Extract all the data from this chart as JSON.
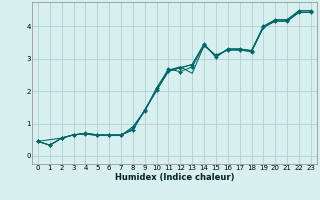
{
  "xlabel": "Humidex (Indice chaleur)",
  "bg_color": "#d8efef",
  "grid_color": "#a8cccc",
  "line_color": "#006666",
  "xlim": [
    -0.5,
    23.5
  ],
  "ylim": [
    -0.25,
    4.75
  ],
  "xticks": [
    0,
    1,
    2,
    3,
    4,
    5,
    6,
    7,
    8,
    9,
    10,
    11,
    12,
    13,
    14,
    15,
    16,
    17,
    18,
    19,
    20,
    21,
    22,
    23
  ],
  "yticks": [
    0,
    1,
    2,
    3,
    4
  ],
  "lines": [
    {
      "x": [
        0,
        1,
        2,
        3,
        4,
        5,
        6,
        7,
        8,
        9,
        10,
        11,
        12,
        13,
        14,
        15,
        16,
        17,
        18,
        19,
        20,
        21,
        22,
        23
      ],
      "y": [
        0.45,
        0.33,
        0.55,
        0.65,
        0.7,
        0.65,
        0.65,
        0.65,
        0.8,
        1.42,
        2.02,
        2.62,
        2.72,
        2.82,
        3.45,
        3.05,
        3.3,
        3.3,
        3.25,
        4.0,
        4.2,
        4.2,
        4.48,
        4.48
      ],
      "marker": true
    },
    {
      "x": [
        0,
        2,
        3,
        4,
        5,
        6,
        7,
        8,
        9,
        10,
        11,
        12,
        13,
        14,
        15,
        16,
        17,
        18,
        19,
        20,
        21,
        22,
        23
      ],
      "y": [
        0.45,
        0.55,
        0.65,
        0.7,
        0.65,
        0.65,
        0.65,
        0.8,
        1.42,
        2.02,
        2.62,
        2.72,
        2.82,
        3.45,
        3.05,
        3.3,
        3.3,
        3.25,
        4.0,
        4.2,
        4.2,
        4.48,
        4.48
      ],
      "marker": false
    },
    {
      "x": [
        0,
        1,
        2,
        3,
        4,
        5,
        6,
        7,
        8,
        9,
        10,
        11,
        12,
        13,
        14,
        15,
        16,
        17,
        18,
        19,
        20,
        21,
        22,
        23
      ],
      "y": [
        0.45,
        0.33,
        0.55,
        0.65,
        0.68,
        0.63,
        0.63,
        0.63,
        0.85,
        1.38,
        2.05,
        2.65,
        2.75,
        2.55,
        3.4,
        3.1,
        3.27,
        3.27,
        3.22,
        3.97,
        4.16,
        4.16,
        4.43,
        4.43
      ],
      "marker": false
    },
    {
      "x": [
        0,
        1,
        2,
        3,
        4,
        5,
        6,
        7,
        8,
        9,
        10,
        11,
        12,
        13,
        14,
        15,
        16,
        17,
        18,
        19,
        20,
        21,
        22,
        23
      ],
      "y": [
        0.45,
        0.33,
        0.55,
        0.65,
        0.68,
        0.63,
        0.63,
        0.63,
        0.9,
        1.4,
        2.1,
        2.68,
        2.6,
        2.75,
        3.42,
        3.1,
        3.27,
        3.27,
        3.22,
        3.97,
        4.16,
        4.16,
        4.43,
        4.43
      ],
      "marker": true
    }
  ]
}
